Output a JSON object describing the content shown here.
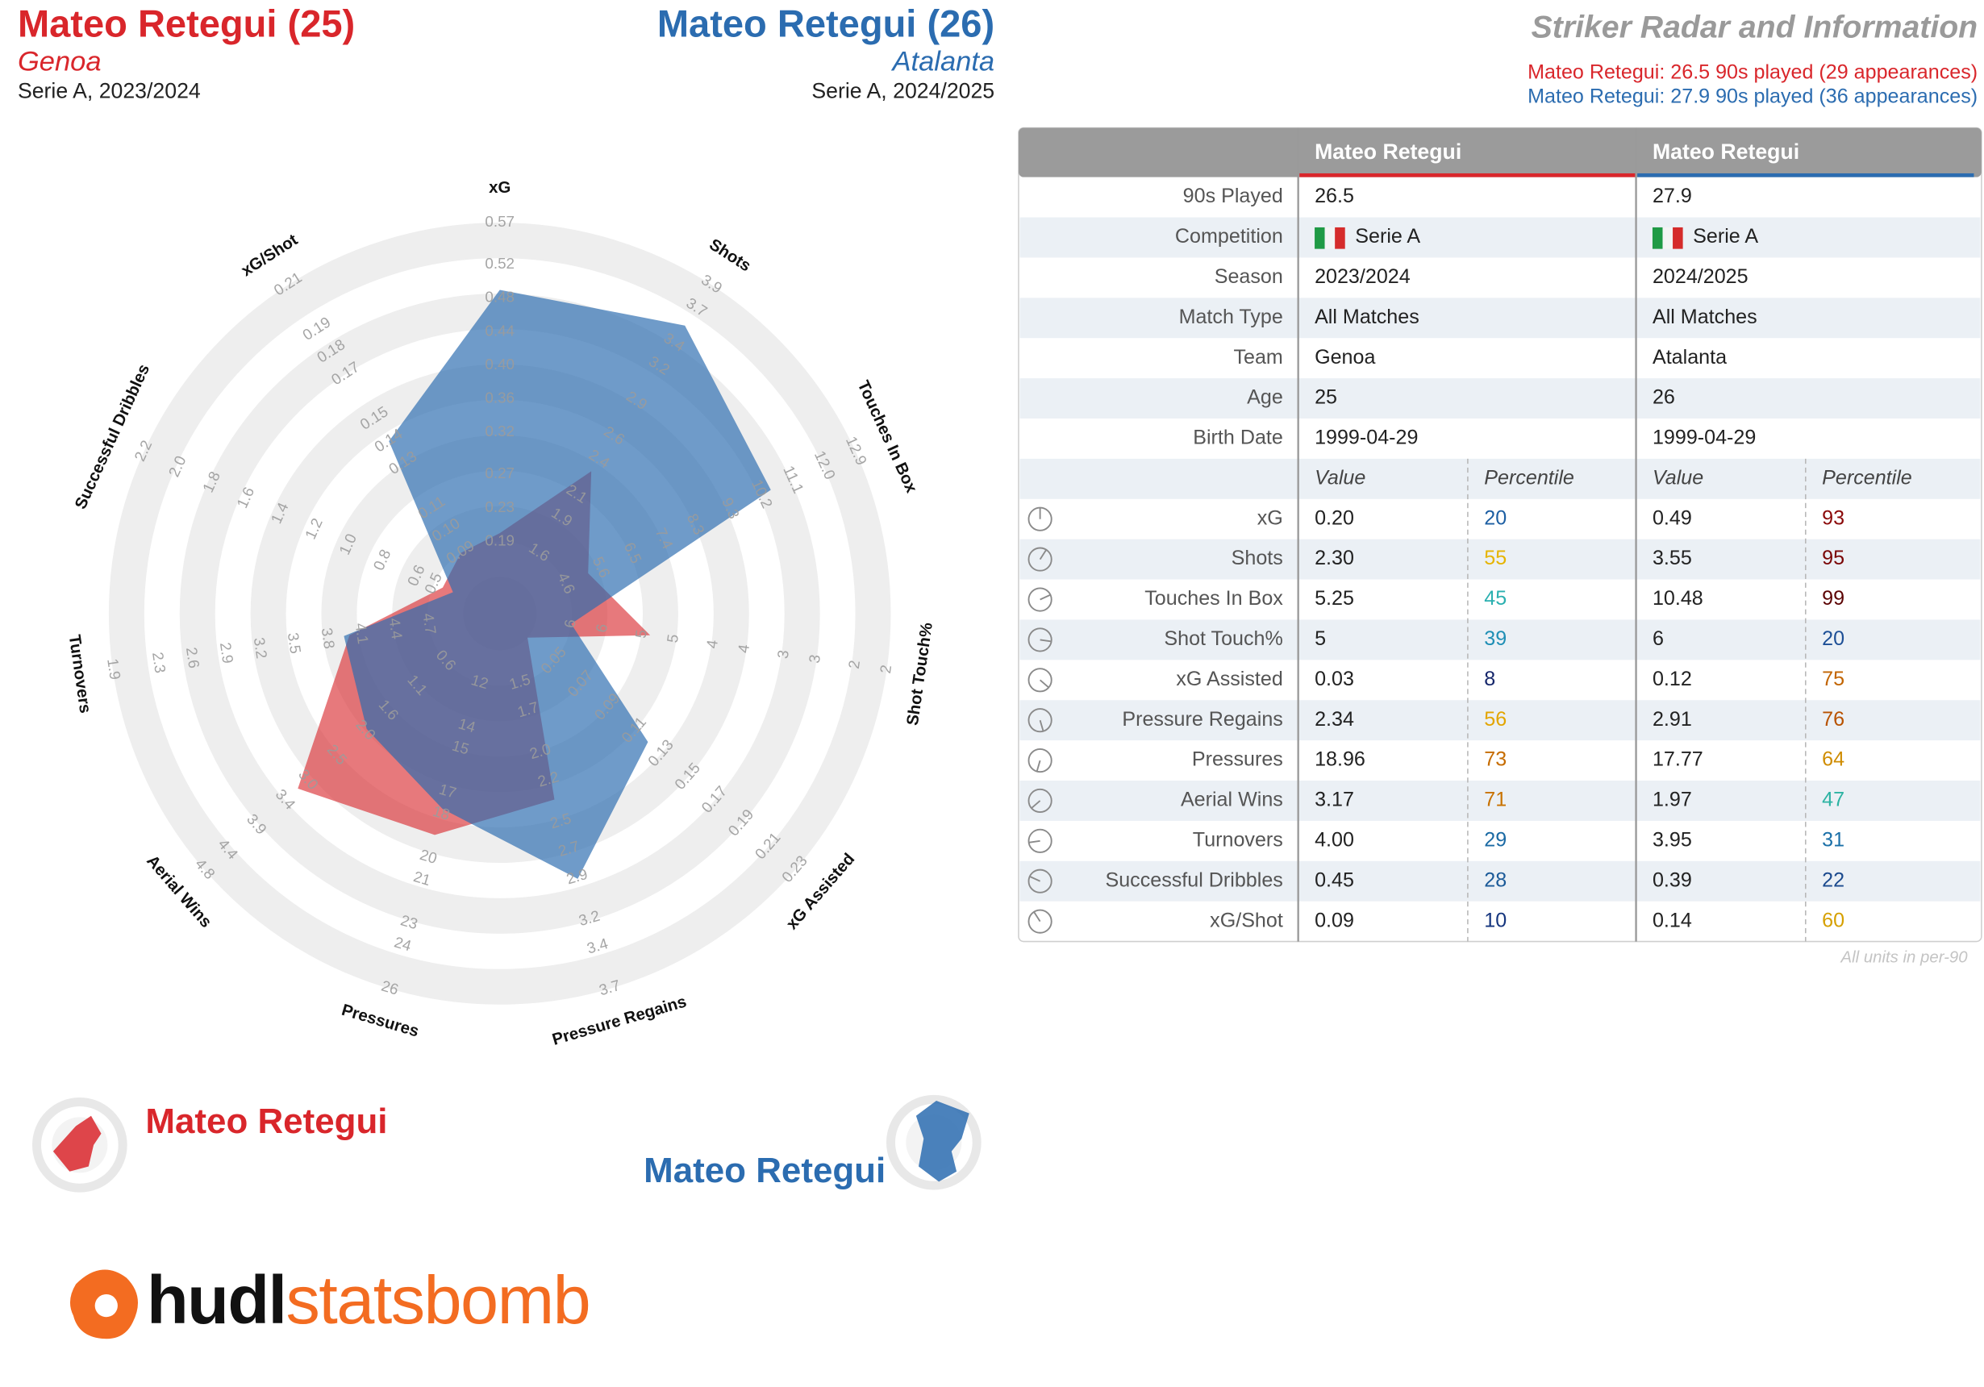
{
  "header": {
    "left": {
      "name": "Mateo Retegui (25)",
      "team": "Genoa",
      "season": "Serie A, 2023/2024"
    },
    "right": {
      "name": "Mateo Retegui (26)",
      "team": "Atalanta",
      "season": "Serie A, 2024/2025"
    },
    "title": "Striker Radar and Information",
    "subtitle_lines": [
      "Mateo Retegui: 26.5 90s played (29 appearances)",
      "Mateo Retegui: 27.9 90s played (36 appearances)"
    ]
  },
  "chart_data": {
    "type": "radar",
    "axes": [
      {
        "name": "xG",
        "ticks": [
          0.19,
          0.23,
          0.27,
          0.32,
          0.36,
          {
            "value": 0.4,
            "label": "0.40"
          },
          0.44,
          0.48,
          0.52,
          0.57
        ]
      },
      {
        "name": "Shots",
        "ticks": [
          1.6,
          1.9,
          2.1,
          2.4,
          2.6,
          2.9,
          3.2,
          3.4,
          3.7,
          3.9
        ]
      },
      {
        "name": "Touches In Box",
        "ticks": [
          4.6,
          5.6,
          6.5,
          7.4,
          8.3,
          9.3,
          10.2,
          11.1,
          {
            "value": 12,
            "label": "12.0"
          },
          12.9
        ]
      },
      {
        "name": "Shot Touch%",
        "ticks": [
          6,
          {
            "value": 5.6,
            "label": "6"
          },
          {
            "value": 5.1,
            "label": "5"
          },
          {
            "value": 4.7,
            "label": "5"
          },
          {
            "value": 4.2,
            "label": "4"
          },
          {
            "value": 3.8,
            "label": "4"
          },
          {
            "value": 3.3,
            "label": "3"
          },
          {
            "value": 2.9,
            "label": "3"
          },
          {
            "value": 2.4,
            "label": "2"
          },
          2
        ]
      },
      {
        "name": "xG Assisted",
        "ticks": [
          0.05,
          0.07,
          0.09,
          0.11,
          0.13,
          0.15,
          0.17,
          0.19,
          0.21,
          0.23
        ]
      },
      {
        "name": "Pressure Regains",
        "ticks": [
          1.5,
          1.7,
          {
            "value": 2,
            "label": "2.0"
          },
          2.2,
          2.5,
          2.7,
          2.9,
          3.2,
          3.4,
          3.7
        ]
      },
      {
        "name": "Pressures",
        "ticks": [
          12,
          14,
          15,
          17,
          18,
          20,
          21,
          23,
          24,
          26
        ]
      },
      {
        "name": "Aerial Wins",
        "ticks": [
          0.6,
          1.1,
          1.6,
          {
            "value": 2,
            "label": "2.0"
          },
          2.5,
          {
            "value": 3,
            "label": "3.0"
          },
          3.4,
          3.9,
          4.4,
          4.8
        ]
      },
      {
        "name": "Turnovers",
        "ticks": [
          4.7,
          4.4,
          4.1,
          3.8,
          3.5,
          3.2,
          2.9,
          2.6,
          2.3,
          1.9
        ]
      },
      {
        "name": "Successful Dribbles",
        "ticks": [
          0.5,
          0.6,
          0.8,
          {
            "value": 1,
            "label": "1.0"
          },
          1.2,
          1.4,
          1.6,
          1.8,
          {
            "value": 2,
            "label": "2.0"
          },
          2.2
        ]
      },
      {
        "name": "xG/Shot",
        "ticks": [
          0.09,
          {
            "value": 0.1,
            "label": "0.10"
          },
          0.11,
          0.13,
          0.14,
          0.15,
          0.17,
          0.18,
          0.19,
          0.21
        ]
      }
    ],
    "series": [
      {
        "name": "Mateo Retegui",
        "color": "#d9262b",
        "values": [
          0.2,
          2.3,
          5.25,
          5,
          0.03,
          2.34,
          18.96,
          3.17,
          4.0,
          0.45,
          0.09
        ]
      },
      {
        "name": "Mateo Retegui",
        "color": "#2b6cb0",
        "values": [
          0.49,
          3.55,
          10.48,
          6,
          0.12,
          2.91,
          17.77,
          1.97,
          3.95,
          0.39,
          0.14
        ]
      }
    ]
  },
  "table": {
    "info_rows": [
      {
        "label": "90s Played",
        "cells": [
          "26.5",
          "27.9"
        ]
      },
      {
        "label": "Competition",
        "cells": [
          "Serie A",
          "Serie A"
        ]
      },
      {
        "label": "Season",
        "cells": [
          "2023/2024",
          "2024/2025"
        ]
      },
      {
        "label": "Match Type",
        "cells": [
          "All Matches",
          "All Matches"
        ]
      },
      {
        "label": "Team",
        "cells": [
          "Genoa",
          "Atalanta"
        ]
      },
      {
        "label": "Age",
        "cells": [
          "25",
          "26"
        ]
      },
      {
        "label": "Birth Date",
        "cells": [
          "1999-04-29",
          "1999-04-29"
        ]
      }
    ],
    "sub_headers": [
      "Value",
      "Percentile"
    ],
    "stats": [
      [
        {
          "value": "0.20",
          "percentile": 20,
          "color": "#1d5fa3"
        },
        {
          "value": "0.49",
          "percentile": 93,
          "color": "#8b0a0a"
        }
      ],
      [
        {
          "value": "2.30",
          "percentile": 55,
          "color": "#e6b400"
        },
        {
          "value": "3.55",
          "percentile": 95,
          "color": "#7a0606"
        }
      ],
      [
        {
          "value": "5.25",
          "percentile": 45,
          "color": "#2bb0b0"
        },
        {
          "value": "10.48",
          "percentile": 99,
          "color": "#5c0404"
        }
      ],
      [
        {
          "value": "5",
          "percentile": 39,
          "color": "#1f8fb5"
        },
        {
          "value": "6",
          "percentile": 20,
          "color": "#1d4f96"
        }
      ],
      [
        {
          "value": "0.03",
          "percentile": 8,
          "color": "#14256a"
        },
        {
          "value": "0.12",
          "percentile": 75,
          "color": "#c26400"
        }
      ],
      [
        {
          "value": "2.34",
          "percentile": 56,
          "color": "#e3a500"
        },
        {
          "value": "2.91",
          "percentile": 76,
          "color": "#b85200"
        }
      ],
      [
        {
          "value": "18.96",
          "percentile": 73,
          "color": "#c66c00"
        },
        {
          "value": "17.77",
          "percentile": 64,
          "color": "#cf8c00"
        }
      ],
      [
        {
          "value": "3.17",
          "percentile": 71,
          "color": "#c87200"
        },
        {
          "value": "1.97",
          "percentile": 47,
          "color": "#2db3a3"
        }
      ],
      [
        {
          "value": "4.00",
          "percentile": 29,
          "color": "#1b6aa4"
        },
        {
          "value": "3.95",
          "percentile": 31,
          "color": "#1b70a8"
        }
      ],
      [
        {
          "value": "0.45",
          "percentile": 28,
          "color": "#1b5a98"
        },
        {
          "value": "0.39",
          "percentile": 22,
          "color": "#1b4a8e"
        }
      ],
      [
        {
          "value": "0.09",
          "percentile": 10,
          "color": "#15357e"
        },
        {
          "value": "0.14",
          "percentile": 60,
          "color": "#d6a000"
        }
      ]
    ],
    "footnote": "All units in per-90"
  },
  "logo": {
    "dark": "hudl",
    "light": "statsbomb"
  }
}
